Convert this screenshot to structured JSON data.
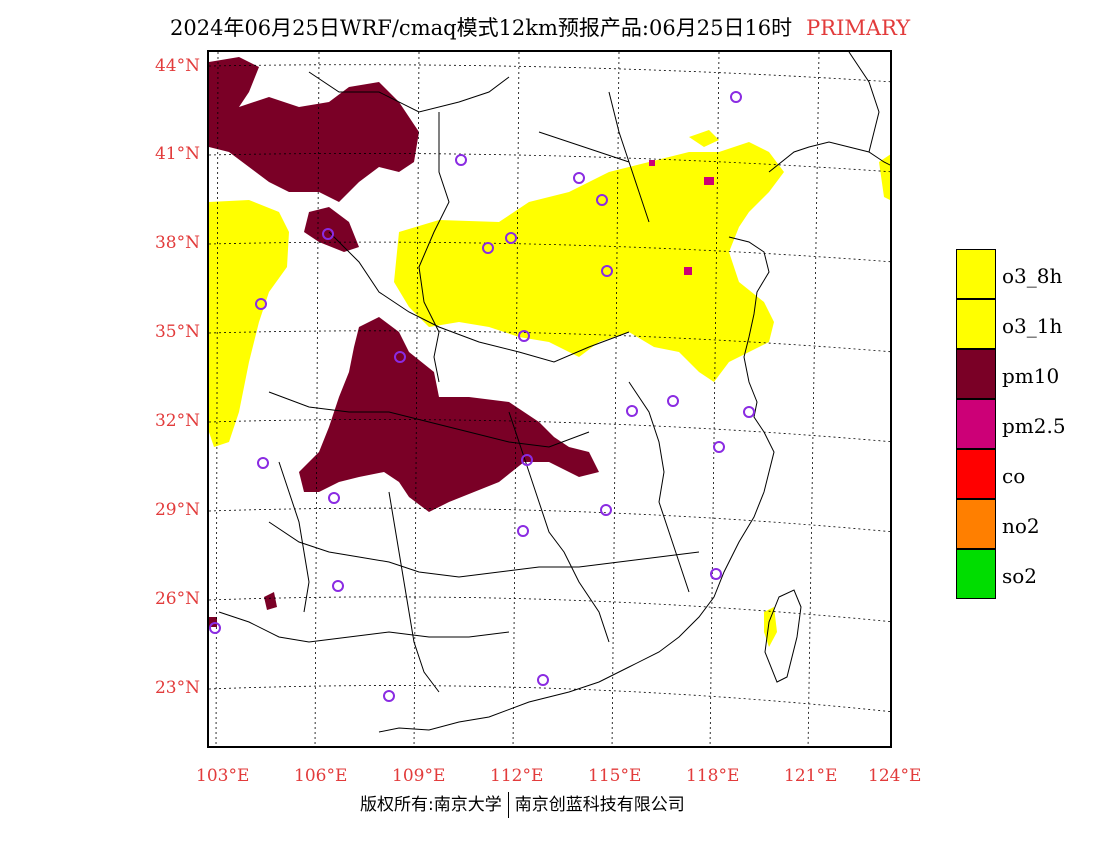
{
  "title": {
    "main": "2024年06月25日WRF/cmaq模式12km预报产品:06月25日16时",
    "tag": "PRIMARY"
  },
  "axes": {
    "lat_labels": [
      "44°N",
      "41°N",
      "38°N",
      "35°N",
      "32°N",
      "29°N",
      "26°N",
      "23°N"
    ],
    "lon_labels": [
      "103°E",
      "106°E",
      "109°E",
      "112°E",
      "115°E",
      "118°E",
      "121°E",
      "124°E"
    ]
  },
  "legend": [
    {
      "label": "o3_8h",
      "color": "#ffff00"
    },
    {
      "label": "o3_1h",
      "color": "#ffff00"
    },
    {
      "label": "pm10",
      "color": "#7a0026"
    },
    {
      "label": "pm2.5",
      "color": "#cc0077"
    },
    {
      "label": "co",
      "color": "#ff0000"
    },
    {
      "label": "no2",
      "color": "#ff7f00"
    },
    {
      "label": "so2",
      "color": "#00dd00"
    }
  ],
  "footer": {
    "left": "版权所有:南京大学",
    "right": "南京创蓝科技有限公司"
  },
  "colors": {
    "accent_text": "#e23b3b",
    "station_marker": "#8a2be2"
  }
}
